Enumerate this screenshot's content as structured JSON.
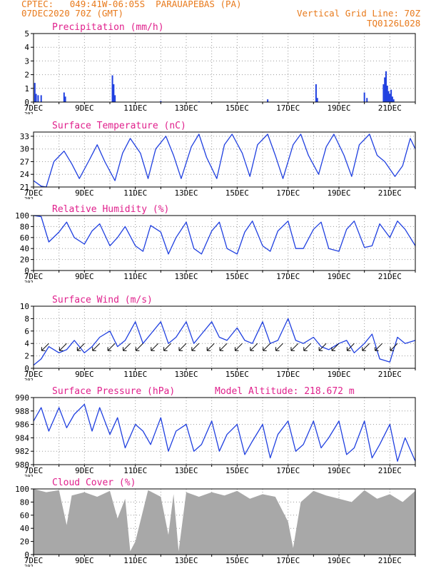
{
  "header": {
    "line1_left": "CPTEC:   049:41W-06:05S  PARAUAPEBAS (PA)",
    "line2_left": "07DEC2020 70Z (GMT)",
    "line1_right": "Vertical Grid Line: 70Z",
    "line2_right": "TQ0126L028"
  },
  "colors": {
    "header": "#e87a1c",
    "title": "#e0208c",
    "series": "#2040e0",
    "cloud": "#a8a8a8",
    "grid": "#9a9a9a"
  },
  "x_ticks": [
    "7DEC",
    "9DEC",
    "11DEC",
    "13DEC",
    "15DEC",
    "17DEC",
    "19DEC",
    "21DEC"
  ],
  "x_corner_label": "202",
  "chart_data": [
    {
      "id": "precip",
      "type": "bar",
      "title": "Precipitation (mm/h)",
      "ylim": [
        0,
        5
      ],
      "yticks": [
        "0",
        "1",
        "2",
        "3",
        "4",
        "5"
      ],
      "x": [
        7.05,
        7.1,
        7.18,
        7.3,
        8.2,
        8.25,
        10.1,
        10.15,
        10.2,
        12.0,
        13.5,
        16.2,
        18.1,
        18.15,
        20.0,
        20.1,
        20.75,
        20.8,
        20.85,
        20.9,
        20.95,
        21.0,
        21.05,
        21.1,
        21.15
      ],
      "values": [
        1.4,
        0.6,
        0.5,
        0.5,
        0.7,
        0.4,
        1.95,
        1.3,
        0.5,
        0.08,
        0.05,
        0.2,
        1.3,
        0.3,
        0.7,
        0.3,
        1.3,
        1.8,
        2.25,
        1.2,
        0.8,
        0.6,
        0.9,
        0.4,
        0.2
      ]
    },
    {
      "id": "temp",
      "type": "line",
      "title": "Surface Temperature (nC)",
      "ylim": [
        21,
        34
      ],
      "yticks": [
        "21",
        "24",
        "27",
        "30",
        "33"
      ],
      "x": [
        7.0,
        7.3,
        7.5,
        7.8,
        8.2,
        8.5,
        8.8,
        9.2,
        9.5,
        9.8,
        10.2,
        10.5,
        10.8,
        11.2,
        11.5,
        11.8,
        12.2,
        12.5,
        12.8,
        13.2,
        13.5,
        13.8,
        14.2,
        14.5,
        14.8,
        15.2,
        15.5,
        15.8,
        16.2,
        16.5,
        16.8,
        17.2,
        17.5,
        17.8,
        18.2,
        18.5,
        18.8,
        19.2,
        19.5,
        19.8,
        20.2,
        20.5,
        20.8,
        21.2,
        21.5,
        21.8,
        22.0
      ],
      "values": [
        22.5,
        21.2,
        21.0,
        27.0,
        29.5,
        26.5,
        23.0,
        27.5,
        31.0,
        27.0,
        22.5,
        29.0,
        32.5,
        29.0,
        23.0,
        30.0,
        33.0,
        28.5,
        23.0,
        30.5,
        33.5,
        28.0,
        23.0,
        31.0,
        33.5,
        29.0,
        23.5,
        31.0,
        33.5,
        28.5,
        23.0,
        31.0,
        33.5,
        28.5,
        24.0,
        30.5,
        33.5,
        28.5,
        23.5,
        31.0,
        33.5,
        28.5,
        27.0,
        23.5,
        26.0,
        32.5,
        30.0
      ]
    },
    {
      "id": "rh",
      "type": "line",
      "title": "Relative Humidity (%)",
      "ylim": [
        0,
        100
      ],
      "yticks": [
        "0",
        "20",
        "40",
        "60",
        "80",
        "100"
      ],
      "x": [
        7.0,
        7.3,
        7.6,
        8.0,
        8.3,
        8.6,
        9.0,
        9.3,
        9.6,
        10.0,
        10.3,
        10.6,
        11.0,
        11.3,
        11.6,
        12.0,
        12.3,
        12.6,
        13.0,
        13.3,
        13.6,
        14.0,
        14.3,
        14.6,
        15.0,
        15.3,
        15.6,
        16.0,
        16.3,
        16.6,
        17.0,
        17.3,
        17.6,
        18.0,
        18.3,
        18.6,
        19.0,
        19.3,
        19.6,
        20.0,
        20.3,
        20.6,
        21.0,
        21.3,
        21.6,
        22.0
      ],
      "values": [
        100,
        98,
        52,
        70,
        88,
        60,
        48,
        72,
        85,
        45,
        60,
        80,
        45,
        35,
        82,
        70,
        30,
        60,
        88,
        40,
        30,
        72,
        88,
        40,
        30,
        70,
        90,
        45,
        35,
        72,
        90,
        40,
        40,
        75,
        88,
        40,
        35,
        75,
        90,
        42,
        45,
        85,
        60,
        90,
        75,
        45
      ]
    },
    {
      "id": "wind",
      "type": "line",
      "title": "Surface Wind (m/s)",
      "ylim": [
        0,
        10
      ],
      "yticks": [
        "0",
        "2",
        "4",
        "6",
        "8",
        "10"
      ],
      "x": [
        7.0,
        7.3,
        7.6,
        8.0,
        8.3,
        8.6,
        9.0,
        9.3,
        9.6,
        10.0,
        10.3,
        10.6,
        11.0,
        11.3,
        11.6,
        12.0,
        12.3,
        12.6,
        13.0,
        13.3,
        13.6,
        14.0,
        14.3,
        14.6,
        15.0,
        15.3,
        15.6,
        16.0,
        16.3,
        16.6,
        17.0,
        17.3,
        17.6,
        18.0,
        18.3,
        18.6,
        19.0,
        19.3,
        19.6,
        20.0,
        20.3,
        20.6,
        21.0,
        21.3,
        21.6,
        22.0
      ],
      "values": [
        0.5,
        1.5,
        3.5,
        2.5,
        3.0,
        4.5,
        2.5,
        3.5,
        5.0,
        6.0,
        3.5,
        4.5,
        7.5,
        4.0,
        5.5,
        7.5,
        4.0,
        5.0,
        7.5,
        4.0,
        5.5,
        7.5,
        5.0,
        4.5,
        6.5,
        4.5,
        4.0,
        7.5,
        4.0,
        4.5,
        8.0,
        4.5,
        4.0,
        5.0,
        3.5,
        3.0,
        4.0,
        4.5,
        2.5,
        4.0,
        5.5,
        1.5,
        1.0,
        5.0,
        4.0,
        4.5
      ],
      "arrows_x": [
        7.6,
        8.3,
        9.0,
        9.6,
        10.2,
        10.8,
        11.3,
        11.9,
        12.4,
        13.0,
        13.5,
        14.1,
        14.6,
        15.2,
        15.8,
        16.3,
        16.8,
        17.4,
        17.9,
        18.5,
        19.0,
        19.6,
        20.2,
        20.7,
        21.3
      ]
    },
    {
      "id": "pressure",
      "type": "line",
      "title": "Surface Pressure (hPa)",
      "subtitle": "Model Altitude: 218.672 m",
      "ylim": [
        980,
        990
      ],
      "yticks": [
        "980",
        "982",
        "984",
        "986",
        "988",
        "990"
      ],
      "x": [
        7.0,
        7.3,
        7.6,
        8.0,
        8.3,
        8.6,
        9.0,
        9.3,
        9.6,
        10.0,
        10.3,
        10.6,
        11.0,
        11.3,
        11.6,
        12.0,
        12.3,
        12.6,
        13.0,
        13.3,
        13.6,
        14.0,
        14.3,
        14.6,
        15.0,
        15.3,
        15.6,
        16.0,
        16.3,
        16.6,
        17.0,
        17.3,
        17.6,
        18.0,
        18.3,
        18.6,
        19.0,
        19.3,
        19.6,
        20.0,
        20.3,
        20.6,
        21.0,
        21.3,
        21.6,
        22.0
      ],
      "values": [
        986.5,
        988.5,
        985.0,
        988.5,
        985.5,
        987.5,
        989.0,
        985.0,
        988.5,
        984.5,
        987.0,
        982.5,
        986.0,
        985.0,
        983.0,
        987.0,
        982.0,
        985.0,
        986.0,
        982.0,
        983.0,
        986.5,
        982.0,
        984.5,
        986.0,
        981.5,
        983.5,
        986.0,
        981.0,
        984.5,
        986.5,
        982.0,
        983.0,
        986.5,
        982.5,
        984.0,
        986.5,
        981.5,
        982.5,
        986.5,
        981.0,
        983.0,
        986.0,
        980.5,
        984.0,
        980.5
      ]
    },
    {
      "id": "cloud",
      "type": "area",
      "title": "Cloud Cover (%)",
      "ylim": [
        0,
        100
      ],
      "yticks": [
        "0",
        "20",
        "40",
        "60",
        "80",
        "100"
      ],
      "x": [
        7.0,
        7.5,
        8.0,
        8.3,
        8.5,
        9.0,
        9.5,
        10.0,
        10.3,
        10.6,
        10.8,
        11.0,
        11.5,
        12.0,
        12.3,
        12.5,
        12.7,
        13.0,
        13.5,
        14.0,
        14.5,
        15.0,
        15.5,
        16.0,
        16.5,
        17.0,
        17.2,
        17.5,
        18.0,
        18.5,
        19.0,
        19.5,
        20.0,
        20.5,
        21.0,
        21.5,
        22.0
      ],
      "values": [
        100,
        95,
        98,
        45,
        90,
        95,
        88,
        97,
        55,
        85,
        5,
        20,
        98,
        88,
        30,
        92,
        5,
        95,
        88,
        95,
        90,
        97,
        85,
        92,
        88,
        50,
        10,
        80,
        97,
        90,
        85,
        80,
        98,
        85,
        92,
        80,
        97
      ]
    }
  ]
}
